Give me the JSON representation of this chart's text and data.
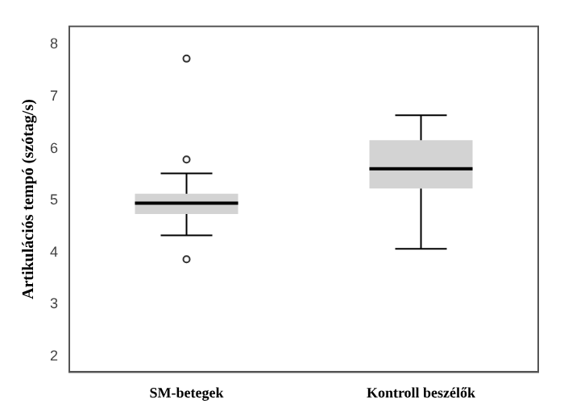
{
  "chart_data": {
    "type": "box",
    "ylabel": "Artikulációs tempó (szótag/s)",
    "categories": [
      "SM-betegek",
      "Kontroll beszélők"
    ],
    "boxes": [
      {
        "low": 4.33,
        "q1": 4.74,
        "median": 4.95,
        "q3": 5.13,
        "high": 5.52,
        "outliers": [
          5.79,
          3.87,
          7.73
        ]
      },
      {
        "low": 4.07,
        "q1": 5.23,
        "median": 5.61,
        "q3": 6.16,
        "high": 6.64
      }
    ],
    "color": "#d3d3d3",
    "ylim": [
      1.7,
      8.35
    ],
    "yticks": [
      2,
      3,
      4,
      5,
      6,
      7,
      8
    ],
    "grid": false,
    "legend": false
  }
}
